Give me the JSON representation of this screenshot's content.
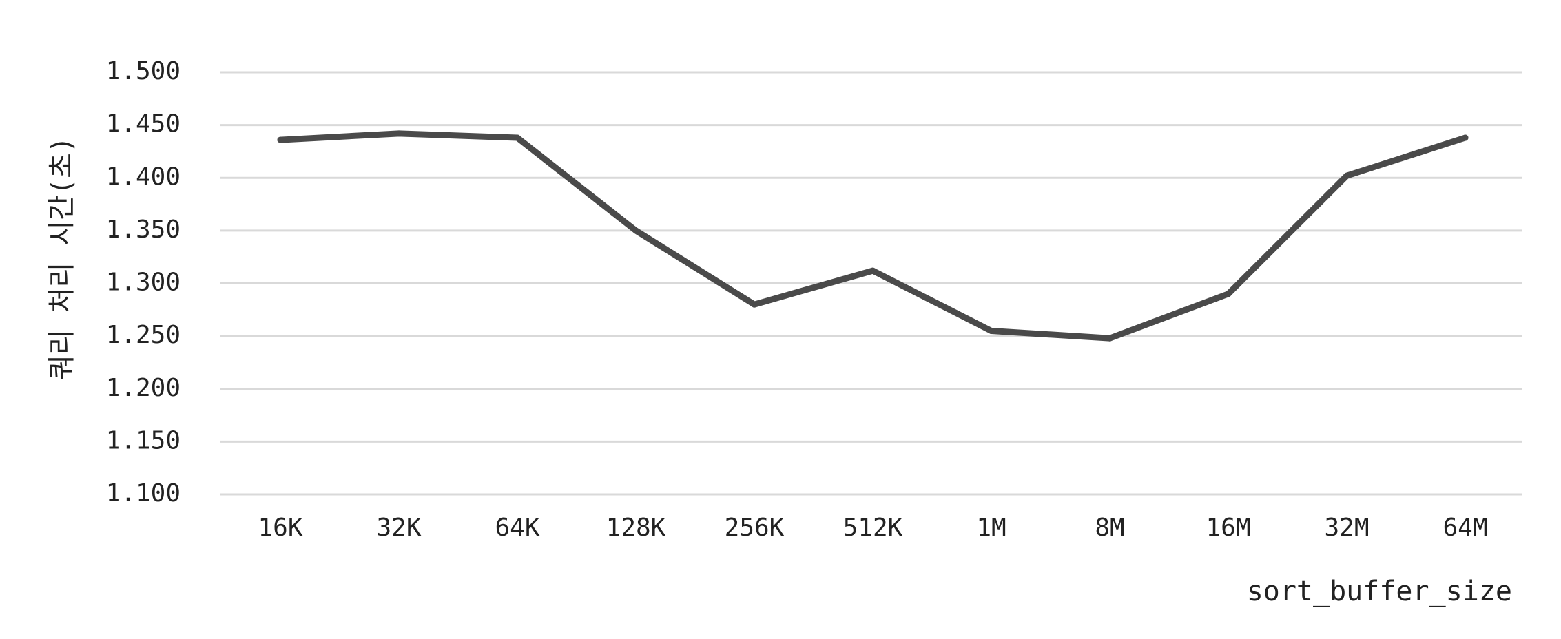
{
  "chart_data": {
    "type": "line",
    "title": "",
    "xlabel": "sort_buffer_size",
    "ylabel": "쿼리 처리 시간(초)",
    "categories": [
      "16K",
      "32K",
      "64K",
      "128K",
      "256K",
      "512K",
      "1M",
      "8M",
      "16M",
      "32M",
      "64M"
    ],
    "series": [
      {
        "values": [
          1.436,
          1.442,
          1.438,
          1.35,
          1.28,
          1.312,
          1.255,
          1.248,
          1.29,
          1.402,
          1.438
        ]
      }
    ],
    "ylim": [
      1.1,
      1.5
    ],
    "yticks": [
      "1.100",
      "1.150",
      "1.200",
      "1.250",
      "1.300",
      "1.350",
      "1.400",
      "1.450",
      "1.500"
    ],
    "grid": true,
    "legend": "none",
    "colors": {
      "line": "#4a4a4a",
      "grid": "#d9d9d9",
      "text": "#222222"
    }
  }
}
